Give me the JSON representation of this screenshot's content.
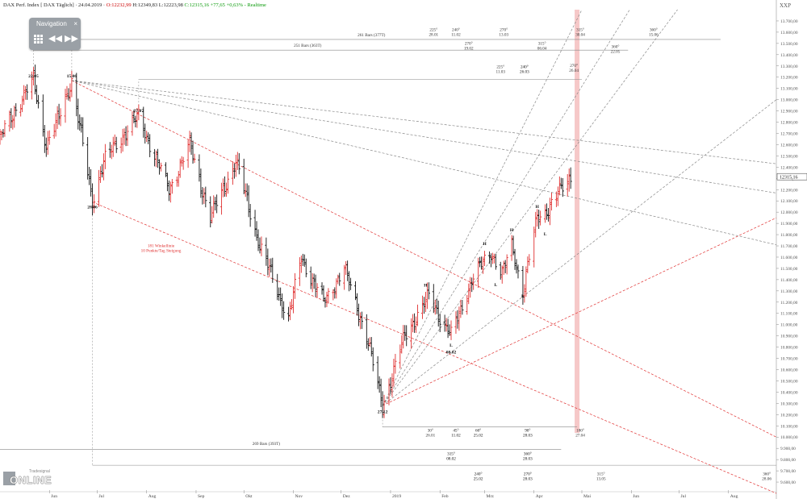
{
  "header": {
    "name": "DAX Perf. Index [ DAX Täglich]",
    "date": "24.04.2019",
    "open": "O:12232,99",
    "high": "H:12349,83",
    "low": "L:12223,98",
    "close": "C:12315,16",
    "change": "+77,65",
    "change_pct": "+0,63%",
    "mode": "Realtime",
    "symbol": "XXP"
  },
  "navigation": {
    "title": "Navigation",
    "close": "×",
    "grid_icon": "grid-icon",
    "rewind_icon": "rewind-icon",
    "forward_icon": "forward-icon"
  },
  "logo": {
    "main": "ONLINE",
    "small": "Tradesignal"
  },
  "colors": {
    "up": "#e03030",
    "down": "#111111",
    "fan_red": "#e03030",
    "fan_gray": "#888888",
    "highlight": "#f6c8c8",
    "text": "#333333"
  },
  "chart_data": {
    "type": "ohlc",
    "title": "DAX Perf. Index [ DAX Täglich]",
    "x_axis": {
      "labels": [
        "Jun",
        "Jul",
        "Aug",
        "Sep",
        "Okt",
        "Nov",
        "Dez",
        "2019",
        "Feb",
        "Mrz",
        "Apr",
        "Mai",
        "Jun",
        "Jul",
        "Aug"
      ],
      "range": [
        "2018-05-01",
        "2019-08-31"
      ]
    },
    "y_axis": {
      "ylim": [
        9500,
        13800
      ],
      "tick_step": 100,
      "tick_labels": [
        "9.600,00",
        "9.700,00",
        "9.800,00",
        "9.900,00",
        "10.000,00",
        "10.100,00",
        "10.200,00",
        "10.300,00",
        "10.400,00",
        "10.500,00",
        "10.600,00",
        "10.700,00",
        "10.800,00",
        "10.900,00",
        "11.000,00",
        "11.100,00",
        "11.200,00",
        "11.300,00",
        "11.400,00",
        "11.500,00",
        "11.600,00",
        "11.700,00",
        "11.800,00",
        "11.900,00",
        "12.000,00",
        "12.100,00",
        "12.200,00",
        "12.300,00",
        "12.400,00",
        "12.500,00",
        "12.600,00",
        "12.700,00",
        "12.800,00",
        "12.900,00",
        "13.000,00",
        "13.100,00",
        "13.200,00",
        "13.300,00",
        "13.400,00",
        "13.500,00",
        "13.600,00",
        "13.700,00"
      ],
      "last_value_label": "12315,16",
      "side": "right"
    },
    "price_anchors": [
      [
        "2018-05-01",
        12650
      ],
      [
        "2018-05-10",
        12900
      ],
      [
        "2018-05-22",
        13170
      ],
      [
        "2018-05-30",
        12600
      ],
      [
        "2018-06-06",
        12800
      ],
      [
        "2018-06-15",
        13170
      ],
      [
        "2018-06-28",
        12100
      ],
      [
        "2018-07-05",
        12450
      ],
      [
        "2018-07-18",
        12700
      ],
      [
        "2018-07-27",
        12850
      ],
      [
        "2018-08-15",
        12200
      ],
      [
        "2018-08-28",
        12600
      ],
      [
        "2018-09-10",
        11950
      ],
      [
        "2018-09-26",
        12450
      ],
      [
        "2018-10-11",
        11700
      ],
      [
        "2018-10-29",
        11050
      ],
      [
        "2018-11-06",
        11600
      ],
      [
        "2018-11-20",
        11200
      ],
      [
        "2018-12-03",
        11500
      ],
      [
        "2018-12-17",
        10900
      ],
      [
        "2018-12-27",
        10280
      ],
      [
        "2019-01-10",
        10900
      ],
      [
        "2019-01-25",
        11250
      ],
      [
        "2019-02-08",
        10900
      ],
      [
        "2019-02-21",
        11400
      ],
      [
        "2019-03-05",
        11650
      ],
      [
        "2019-03-12",
        11450
      ],
      [
        "2019-03-18",
        11700
      ],
      [
        "2019-03-25",
        11300
      ],
      [
        "2019-04-03",
        11950
      ],
      [
        "2019-04-08",
        12000
      ],
      [
        "2019-04-24",
        12315
      ]
    ],
    "pivots": [
      {
        "label": "22.05",
        "date": "2018-05-22",
        "price": 13170,
        "pos": "above"
      },
      {
        "label": "15.06",
        "date": "2018-06-15",
        "price": 13170,
        "pos": "above"
      },
      {
        "label": "28.06",
        "date": "2018-06-28",
        "price": 12090,
        "pos": "below"
      },
      {
        "label": "27.07",
        "date": "2018-07-27",
        "price": 12860,
        "pos": "above"
      },
      {
        "label": "27.12",
        "date": "2018-12-27",
        "price": 10270,
        "pos": "below"
      },
      {
        "label": "H",
        "date": "2019-01-23",
        "price": 11310,
        "pos": "above"
      },
      {
        "label": "L",
        "date": "2019-02-08",
        "price": 10860,
        "pos": "below"
      },
      {
        "label": "08.02",
        "date": "2019-02-08",
        "price": 10800,
        "pos": "below"
      },
      {
        "label": "H",
        "date": "2019-03-01",
        "price": 11680,
        "pos": "above"
      },
      {
        "label": "L",
        "date": "2019-03-08",
        "price": 11400,
        "pos": "below"
      },
      {
        "label": "H",
        "date": "2019-03-18",
        "price": 11800,
        "pos": "above"
      },
      {
        "label": "L",
        "date": "2019-03-25",
        "price": 11300,
        "pos": "below"
      },
      {
        "label": "H",
        "date": "2019-04-03",
        "price": 12010,
        "pos": "above"
      },
      {
        "label": "L",
        "date": "2019-04-08",
        "price": 11850,
        "pos": "below"
      }
    ],
    "fan_lines": [
      {
        "color": "red",
        "from": [
          "2018-06-15",
          13170
        ],
        "to": [
          "2019-08-31",
          10000
        ],
        "style": "dashed"
      },
      {
        "color": "red",
        "from": [
          "2018-06-28",
          12090
        ],
        "to": [
          "2019-08-31",
          9500
        ],
        "style": "dashed"
      },
      {
        "color": "red",
        "from": [
          "2018-12-27",
          10280
        ],
        "to": [
          "2019-08-31",
          11950
        ],
        "style": "dashed"
      },
      {
        "color": "gray",
        "from": [
          "2018-06-15",
          13170
        ],
        "to": [
          "2019-08-31",
          12430
        ],
        "style": "dashed"
      },
      {
        "color": "gray",
        "from": [
          "2018-06-15",
          13170
        ],
        "to": [
          "2019-08-31",
          12170
        ],
        "style": "dashed"
      },
      {
        "color": "gray",
        "from": [
          "2018-06-15",
          13170
        ],
        "to": [
          "2019-08-31",
          11710
        ],
        "style": "dashed"
      },
      {
        "color": "gray",
        "from": [
          "2018-12-27",
          10280
        ],
        "to": [
          "2019-08-31",
          13000
        ],
        "style": "dashed"
      },
      {
        "color": "gray",
        "from": [
          "2018-12-27",
          10280
        ],
        "to": [
          "2019-06-30",
          13800
        ],
        "style": "dashed"
      },
      {
        "color": "gray",
        "from": [
          "2018-12-27",
          10280
        ],
        "to": [
          "2019-05-31",
          13800
        ],
        "style": "dashed"
      },
      {
        "color": "gray",
        "from": [
          "2018-12-27",
          10280
        ],
        "to": [
          "2019-05-01",
          13800
        ],
        "style": "dashed"
      }
    ],
    "horizontal_lines": [
      {
        "price": 13535,
        "from": "2018-06-15",
        "to": "2019-07-27"
      },
      {
        "price": 13440,
        "from": "2018-05-22",
        "to": "2019-05-30"
      },
      {
        "price": 13180,
        "from": "2018-07-27",
        "to": "2019-05-01"
      },
      {
        "price": 10090,
        "from": "2018-12-27",
        "to": "2019-04-28"
      },
      {
        "price": 9890,
        "from": "2018-05-01",
        "to": "2019-04-18"
      },
      {
        "price": 9750,
        "from": "2018-06-28",
        "to": "2019-08-31"
      }
    ],
    "highlight_date": "2019-04-28",
    "annotations": [
      {
        "lines": [
          "261 Bars (377T)"
        ],
        "date": "2018-12-20",
        "price": 13565,
        "color": "#333"
      },
      {
        "lines": [
          "225°",
          "28.01"
        ],
        "date": "2019-01-28",
        "price": 13610,
        "color": "#333"
      },
      {
        "lines": [
          "240°",
          "11.02"
        ],
        "date": "2019-02-11",
        "price": 13610,
        "color": "#333"
      },
      {
        "lines": [
          "270°",
          "13.03"
        ],
        "date": "2019-03-13",
        "price": 13610,
        "color": "#333"
      },
      {
        "lines": [
          "315°",
          "30.04"
        ],
        "date": "2019-04-30",
        "price": 13610,
        "color": "#333"
      },
      {
        "lines": [
          "360°",
          "15.06"
        ],
        "date": "2019-06-15",
        "price": 13610,
        "color": "#333"
      },
      {
        "lines": [
          "251 Bars (363T)"
        ],
        "date": "2018-11-10",
        "price": 13470,
        "color": "#333"
      },
      {
        "lines": [
          "270°",
          "19.02"
        ],
        "date": "2019-02-19",
        "price": 13490,
        "color": "#333"
      },
      {
        "lines": [
          "315°",
          "06.04"
        ],
        "date": "2019-04-06",
        "price": 13490,
        "color": "#333"
      },
      {
        "lines": [
          "360°",
          "22.05"
        ],
        "date": "2019-05-22",
        "price": 13460,
        "color": "#333"
      },
      {
        "lines": [
          "225°",
          "11.03"
        ],
        "date": "2019-03-11",
        "price": 13280,
        "color": "#333"
      },
      {
        "lines": [
          "240°",
          "26.03"
        ],
        "date": "2019-03-26",
        "price": 13280,
        "color": "#111"
      },
      {
        "lines": [
          "270°",
          "26.04"
        ],
        "date": "2019-04-26",
        "price": 13290,
        "color": "#333"
      },
      {
        "lines": [
          "181 Winkellinie",
          "10 Punkte/Tag Steigung"
        ],
        "date": "2018-08-10",
        "price": 11690,
        "color": "#e03030"
      },
      {
        "lines": [
          "30°",
          "26.01"
        ],
        "date": "2019-01-26",
        "price": 10050,
        "color": "#333"
      },
      {
        "lines": [
          "45°",
          "11.02"
        ],
        "date": "2019-02-11",
        "price": 10050,
        "color": "#111"
      },
      {
        "lines": [
          "60°",
          "25.02"
        ],
        "date": "2019-02-25",
        "price": 10050,
        "color": "#111"
      },
      {
        "lines": [
          "90°",
          "28.03"
        ],
        "date": "2019-03-28",
        "price": 10050,
        "color": "#111"
      },
      {
        "lines": [
          "180°",
          "27.04"
        ],
        "date": "2019-04-30",
        "price": 10050,
        "color": "#333"
      },
      {
        "lines": [
          "269 Bars (393T)"
        ],
        "date": "2018-10-15",
        "price": 9930,
        "color": "#333"
      },
      {
        "lines": [
          "315°",
          "08.02"
        ],
        "date": "2019-02-08",
        "price": 9840,
        "color": "#111"
      },
      {
        "lines": [
          "360°",
          "28.03"
        ],
        "date": "2019-03-28",
        "price": 9840,
        "color": "#111"
      },
      {
        "lines": [
          "240°",
          "25.02"
        ],
        "date": "2019-02-25",
        "price": 9660,
        "color": "#111"
      },
      {
        "lines": [
          "270°",
          "28.03"
        ],
        "date": "2019-03-28",
        "price": 9660,
        "color": "#111"
      },
      {
        "lines": [
          "315°",
          "13.05"
        ],
        "date": "2019-05-13",
        "price": 9660,
        "color": "#333"
      },
      {
        "lines": [
          "360°",
          "28.06"
        ],
        "date": "2019-08-25",
        "price": 9660,
        "color": "#333"
      }
    ],
    "grid": false,
    "legend": "none"
  }
}
